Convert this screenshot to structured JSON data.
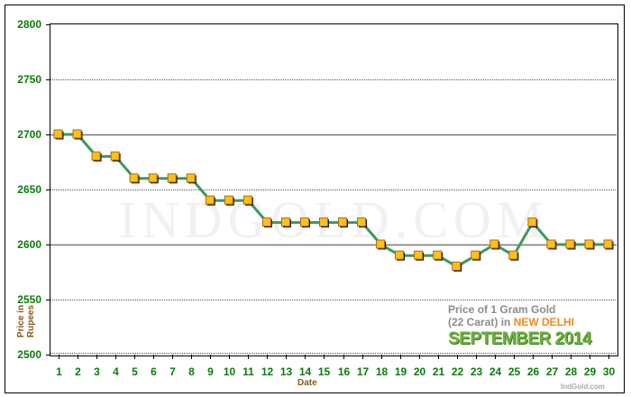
{
  "chart_data": {
    "type": "line",
    "title": "Price of 1 Gram Gold (22 Carat) in NEW DELHI",
    "subtitle": "SEPTEMBER 2014",
    "xlabel": "Date",
    "ylabel": "Price in Rupees",
    "x": [
      1,
      2,
      3,
      4,
      5,
      6,
      7,
      8,
      9,
      10,
      11,
      12,
      13,
      14,
      15,
      16,
      17,
      18,
      19,
      20,
      21,
      22,
      23,
      24,
      25,
      26,
      27,
      28,
      29,
      30
    ],
    "values": [
      2700,
      2700,
      2680,
      2680,
      2660,
      2660,
      2660,
      2660,
      2640,
      2640,
      2640,
      2620,
      2620,
      2620,
      2620,
      2620,
      2620,
      2600,
      2590,
      2590,
      2590,
      2580,
      2590,
      2600,
      2590,
      2620,
      2600,
      2600,
      2600,
      2600
    ],
    "ylim": [
      2500,
      2800
    ],
    "yticks": [
      2500,
      2550,
      2600,
      2650,
      2700,
      2750,
      2800
    ],
    "grid": true,
    "line_color": "#3a9a5a",
    "marker_color": "#ffc20e",
    "watermark": "INDGOLD.COM",
    "credit": "IndGold.com"
  },
  "legend": {
    "line1": "Price of 1 Gram Gold",
    "line2_prefix": "(22 Carat) in ",
    "city": "NEW DELHI",
    "month": "SEPTEMBER 2014"
  }
}
